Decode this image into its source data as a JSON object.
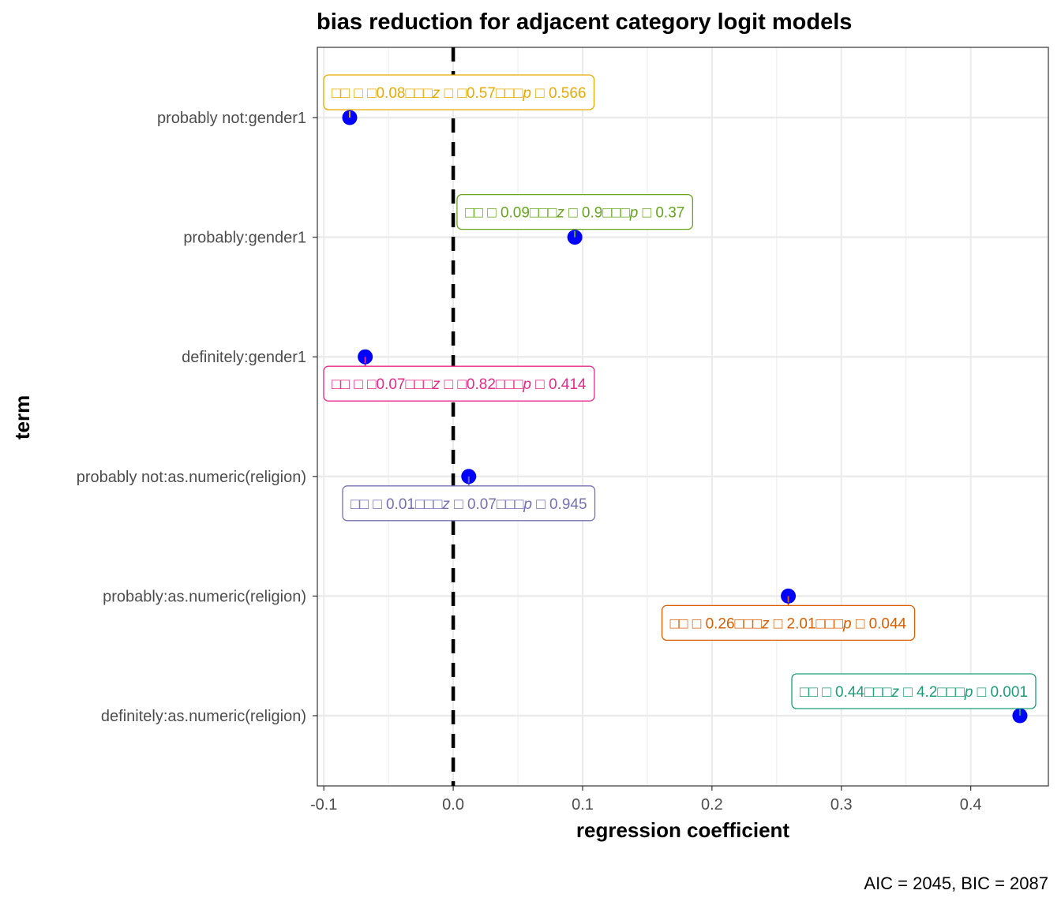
{
  "chart_data": {
    "type": "scatter",
    "title": "bias reduction for adjacent category logit models",
    "xlabel": "regression coefficient",
    "ylabel": "term",
    "caption": "AIC = 2045, BIC = 2087",
    "xlim": [
      -0.105,
      0.46
    ],
    "xticks": [
      -0.1,
      0.0,
      0.1,
      0.2,
      0.3,
      0.4
    ],
    "xtick_labels": [
      "-0.1",
      "0.0",
      "0.1",
      "0.2",
      "0.3",
      "0.4"
    ],
    "grid": true,
    "reference_line": {
      "x": 0,
      "style": "dashed",
      "color": "#000000"
    },
    "point_color": "#0000ff",
    "terms": [
      "probably not:gender1",
      "probably:gender1",
      "definitely:gender1",
      "probably not:as.numeric(religion)",
      "probably:as.numeric(religion)",
      "definitely:as.numeric(religion)"
    ],
    "points": [
      {
        "term": "probably not:gender1",
        "estimate": -0.08,
        "color": "#e6ab02",
        "label": {
          "parts": [
            "□□ □ □",
            "0.08□□□",
            "z",
            " □ □",
            "0.57□□□",
            "p",
            " □ 0.566"
          ]
        }
      },
      {
        "term": "probably:gender1",
        "estimate": 0.094,
        "color": "#66a61e",
        "label": {
          "parts": [
            "□□ □ ",
            "0.09□□□",
            "z",
            " □ ",
            "0.9□□□",
            "p",
            " □ 0.37"
          ]
        }
      },
      {
        "term": "definitely:gender1",
        "estimate": -0.068,
        "color": "#e7298a",
        "label": {
          "parts": [
            "□□ □ □",
            "0.07□□□",
            "z",
            " □ □",
            "0.82□□□",
            "p",
            " □ 0.414"
          ]
        }
      },
      {
        "term": "probably not:as.numeric(religion)",
        "estimate": 0.012,
        "color": "#7570b3",
        "label": {
          "parts": [
            "□□ □ ",
            "0.01□□□",
            "z",
            " □ ",
            "0.07□□□",
            "p",
            " □ 0.945"
          ]
        }
      },
      {
        "term": "probably:as.numeric(religion)",
        "estimate": 0.259,
        "color": "#d95f02",
        "label": {
          "parts": [
            "□□ □ ",
            "0.26□□□",
            "z",
            " □ ",
            "2.01□□□",
            "p",
            " □ 0.044"
          ]
        }
      },
      {
        "term": "definitely:as.numeric(religion)",
        "estimate": 0.438,
        "color": "#1b9e77",
        "label": {
          "parts": [
            "□□ □ ",
            "0.44□□□",
            "z",
            " □ ",
            "4.2□□□",
            "p",
            " □ 0.001"
          ]
        }
      }
    ]
  }
}
